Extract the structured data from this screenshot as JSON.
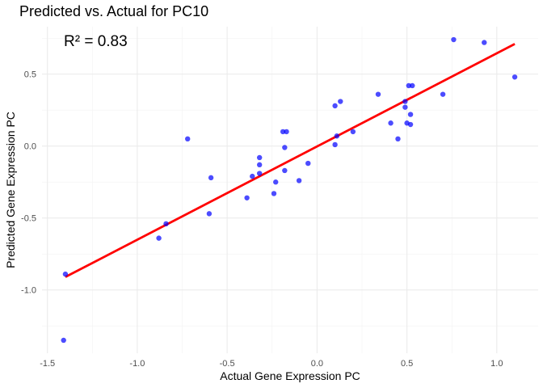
{
  "chart_data": {
    "type": "scatter",
    "title": "Predicted vs. Actual for PC10",
    "xlabel": "Actual Gene Expression PC",
    "ylabel": "Predicted Gene Expression PC",
    "xlim": [
      -1.53,
      1.23
    ],
    "ylim": [
      -1.44,
      0.83
    ],
    "x_ticks": [
      -1.5,
      -1.0,
      -0.5,
      0.0,
      0.5,
      1.0
    ],
    "x_tick_labels": [
      "-1.5",
      "-1.0",
      "-0.5",
      "0.0",
      "0.5",
      "1.0"
    ],
    "x_minor": [
      -1.25,
      -0.75,
      -0.25,
      0.25,
      0.75
    ],
    "y_ticks": [
      -1.0,
      -0.5,
      0.0,
      0.5
    ],
    "y_tick_labels": [
      "-1.0",
      "-0.5",
      "0.0",
      "0.5"
    ],
    "y_minor": [
      -1.25,
      -0.75,
      -0.25,
      0.25,
      0.75
    ],
    "grid": true,
    "annotation": "R² = 0.83",
    "point_color": "#0000ff",
    "line_color": "#ff0000",
    "points": [
      {
        "x": -1.41,
        "y": -1.35
      },
      {
        "x": -1.4,
        "y": -0.89
      },
      {
        "x": -0.88,
        "y": -0.64
      },
      {
        "x": -0.84,
        "y": -0.54
      },
      {
        "x": -0.72,
        "y": 0.05
      },
      {
        "x": -0.59,
        "y": -0.22
      },
      {
        "x": -0.6,
        "y": -0.47
      },
      {
        "x": -0.39,
        "y": -0.36
      },
      {
        "x": -0.36,
        "y": -0.21
      },
      {
        "x": -0.32,
        "y": -0.08
      },
      {
        "x": -0.32,
        "y": -0.13
      },
      {
        "x": -0.32,
        "y": -0.19
      },
      {
        "x": -0.24,
        "y": -0.33
      },
      {
        "x": -0.23,
        "y": -0.25
      },
      {
        "x": -0.19,
        "y": 0.1
      },
      {
        "x": -0.17,
        "y": 0.1
      },
      {
        "x": -0.18,
        "y": -0.01
      },
      {
        "x": -0.18,
        "y": -0.17
      },
      {
        "x": -0.1,
        "y": -0.24
      },
      {
        "x": -0.05,
        "y": -0.12
      },
      {
        "x": 0.1,
        "y": 0.28
      },
      {
        "x": 0.13,
        "y": 0.31
      },
      {
        "x": 0.1,
        "y": 0.01
      },
      {
        "x": 0.11,
        "y": 0.07
      },
      {
        "x": 0.2,
        "y": 0.1
      },
      {
        "x": 0.34,
        "y": 0.36
      },
      {
        "x": 0.41,
        "y": 0.16
      },
      {
        "x": 0.45,
        "y": 0.05
      },
      {
        "x": 0.49,
        "y": 0.31
      },
      {
        "x": 0.49,
        "y": 0.27
      },
      {
        "x": 0.5,
        "y": 0.16
      },
      {
        "x": 0.52,
        "y": 0.15
      },
      {
        "x": 0.52,
        "y": 0.22
      },
      {
        "x": 0.51,
        "y": 0.42
      },
      {
        "x": 0.53,
        "y": 0.42
      },
      {
        "x": 0.7,
        "y": 0.36
      },
      {
        "x": 0.76,
        "y": 0.74
      },
      {
        "x": 0.93,
        "y": 0.72
      },
      {
        "x": 1.1,
        "y": 0.48
      }
    ],
    "fit_line": {
      "x": [
        -1.4,
        1.1
      ],
      "y": [
        -0.91,
        0.71
      ]
    }
  }
}
